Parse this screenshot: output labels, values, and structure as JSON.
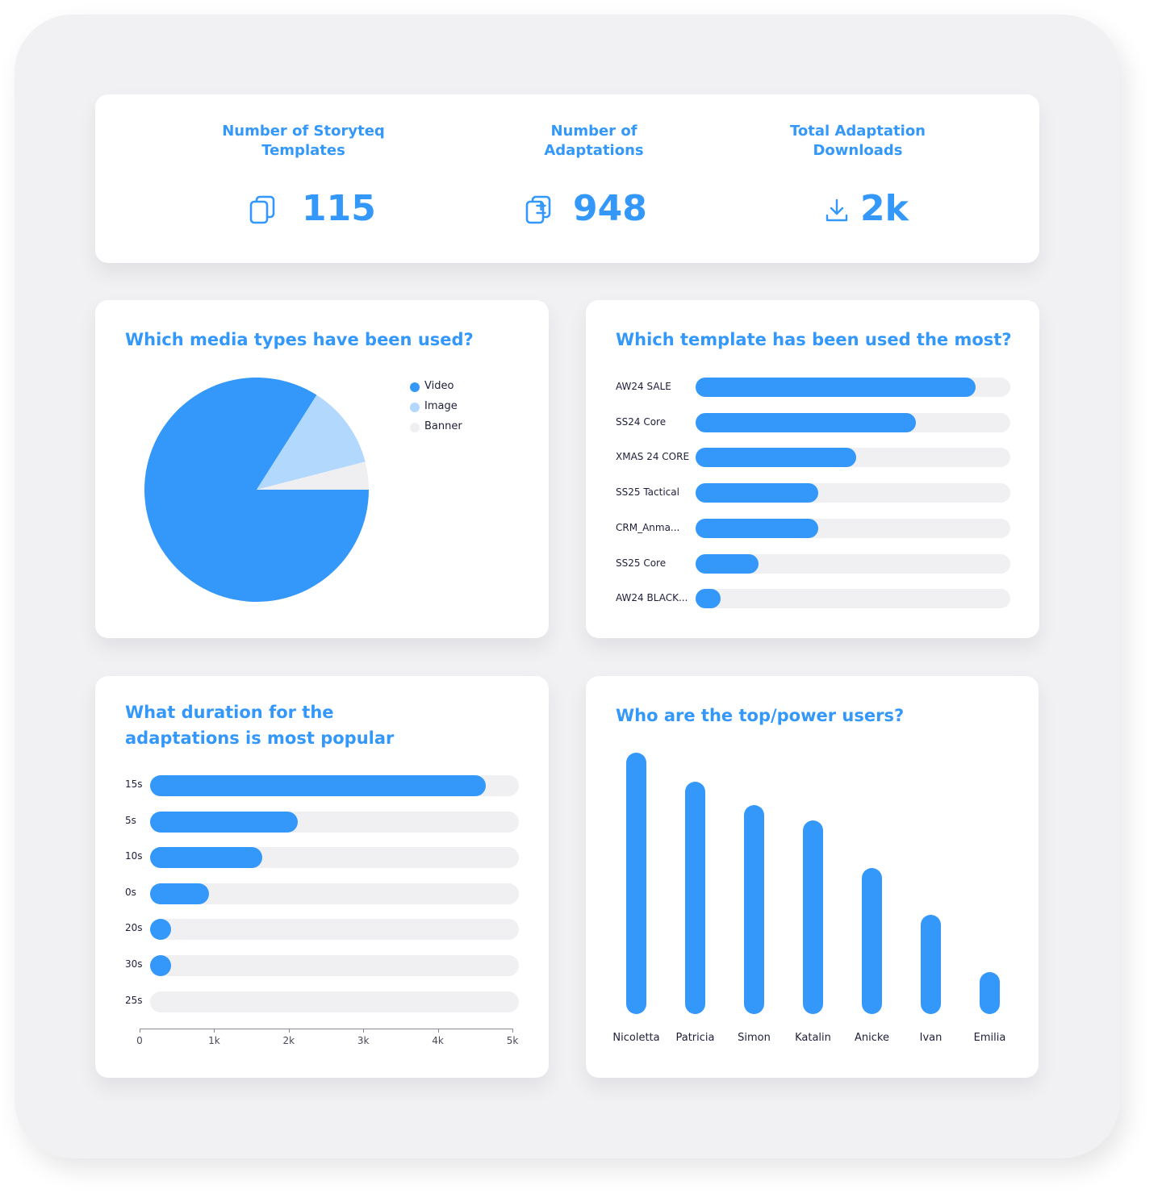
{
  "kpis": [
    {
      "title": "Number of Storyteq Templates",
      "value": "115",
      "icon": "copy-icon"
    },
    {
      "title": "Number of Adaptations",
      "value": "948",
      "icon": "add-copy-icon"
    },
    {
      "title": "Total Adaptation Downloads",
      "value": "2k",
      "icon": "download-icon"
    }
  ],
  "colors": {
    "accent": "#3498fb",
    "light": "#b3d8fd",
    "track": "#f0f0f2",
    "banner": "#efeff1"
  },
  "chart_data": [
    {
      "type": "pie",
      "title": "Which media types have been used?",
      "labels": [
        "Video",
        "Image",
        "Banner"
      ],
      "values": [
        84,
        12,
        4
      ],
      "colors": [
        "#3498fb",
        "#b3d8fd",
        "#efeff1"
      ],
      "legend": "top-right"
    },
    {
      "type": "bar",
      "orientation": "horizontal",
      "title": "Which template has been used the most?",
      "categories": [
        "AW24 SALE",
        "SS24 Core",
        "XMAS 24 CORE",
        "SS25 Tactical",
        "CRM_Anma...",
        "SS25 Core",
        "AW24 BLACK..."
      ],
      "values": [
        89,
        70,
        51,
        39,
        39,
        20,
        8
      ],
      "xlim": [
        0,
        100
      ]
    },
    {
      "type": "bar",
      "orientation": "horizontal",
      "title": "What duration for the adaptations is most popular",
      "categories": [
        "15s",
        "5s",
        "10s",
        "0s",
        "20s",
        "30s",
        "25s"
      ],
      "values": [
        4550,
        2000,
        1520,
        800,
        270,
        270,
        0
      ],
      "xlim": [
        0,
        5000
      ],
      "xticks": [
        "0",
        "1k",
        "2k",
        "3k",
        "4k",
        "5k"
      ]
    },
    {
      "type": "bar",
      "orientation": "vertical",
      "title": "Who are the top/power users?",
      "categories": [
        "Nicoletta",
        "Patricia",
        "Simon",
        "Katalin",
        "Anicke",
        "Ivan",
        "Emilia"
      ],
      "values": [
        100,
        89,
        80,
        74,
        56,
        38,
        16
      ],
      "ylim": [
        0,
        100
      ]
    }
  ]
}
